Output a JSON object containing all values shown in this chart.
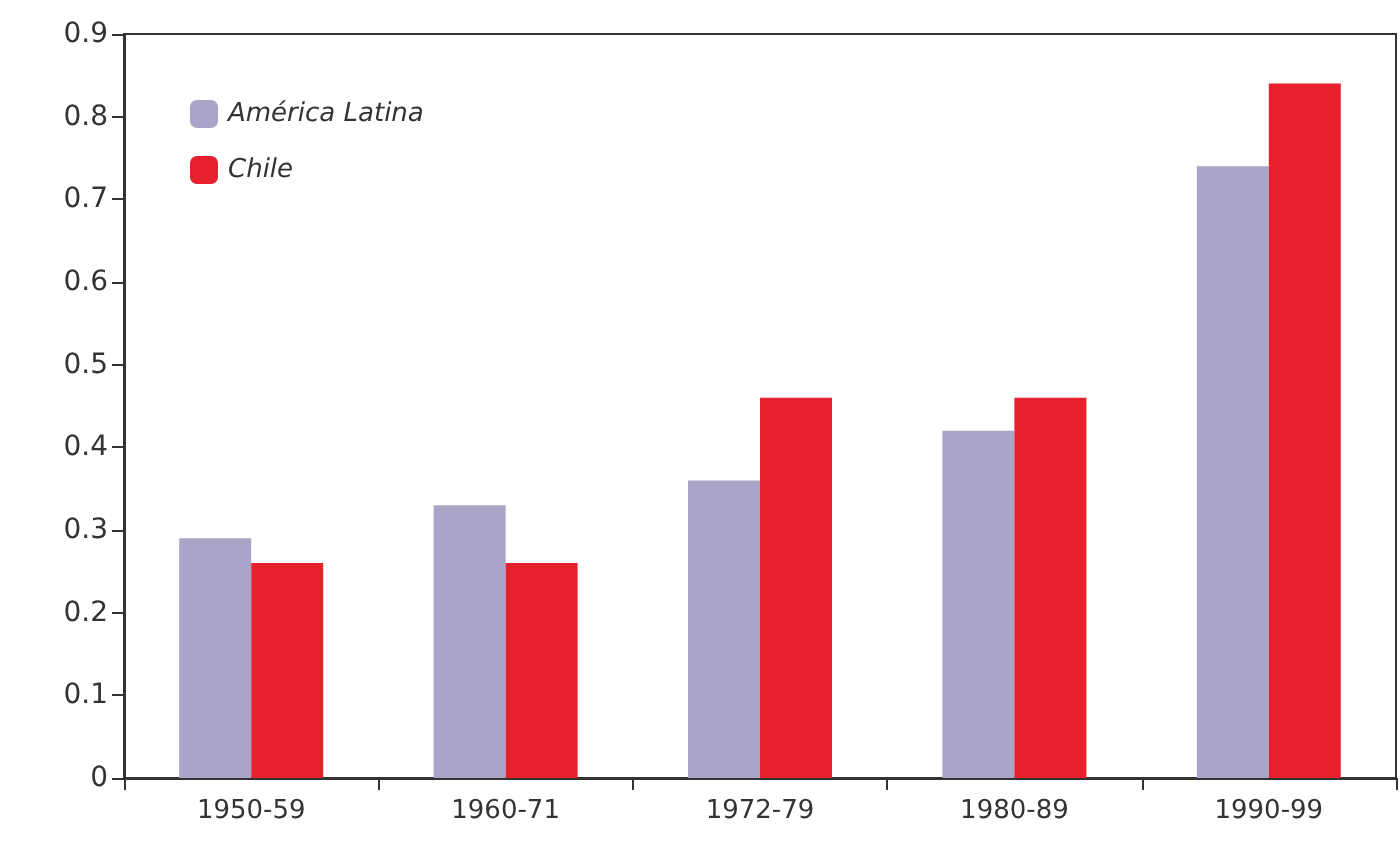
{
  "chart_data": {
    "type": "bar",
    "categories": [
      "1950-59",
      "1960-71",
      "1972-79",
      "1980-89",
      "1990-99"
    ],
    "series": [
      {
        "name": "América Latina",
        "color": "#aaa4c8",
        "values": [
          0.29,
          0.33,
          0.36,
          0.42,
          0.74
        ]
      },
      {
        "name": "Chile",
        "color": "#e6202c",
        "values": [
          0.26,
          0.26,
          0.46,
          0.46,
          0.84
        ]
      }
    ],
    "ylim": [
      0,
      0.9
    ],
    "yticks": [
      0,
      0.1,
      0.2,
      0.3,
      0.4,
      0.5,
      0.6,
      0.7,
      0.8,
      0.9
    ],
    "grid": false,
    "legend": "top left"
  }
}
